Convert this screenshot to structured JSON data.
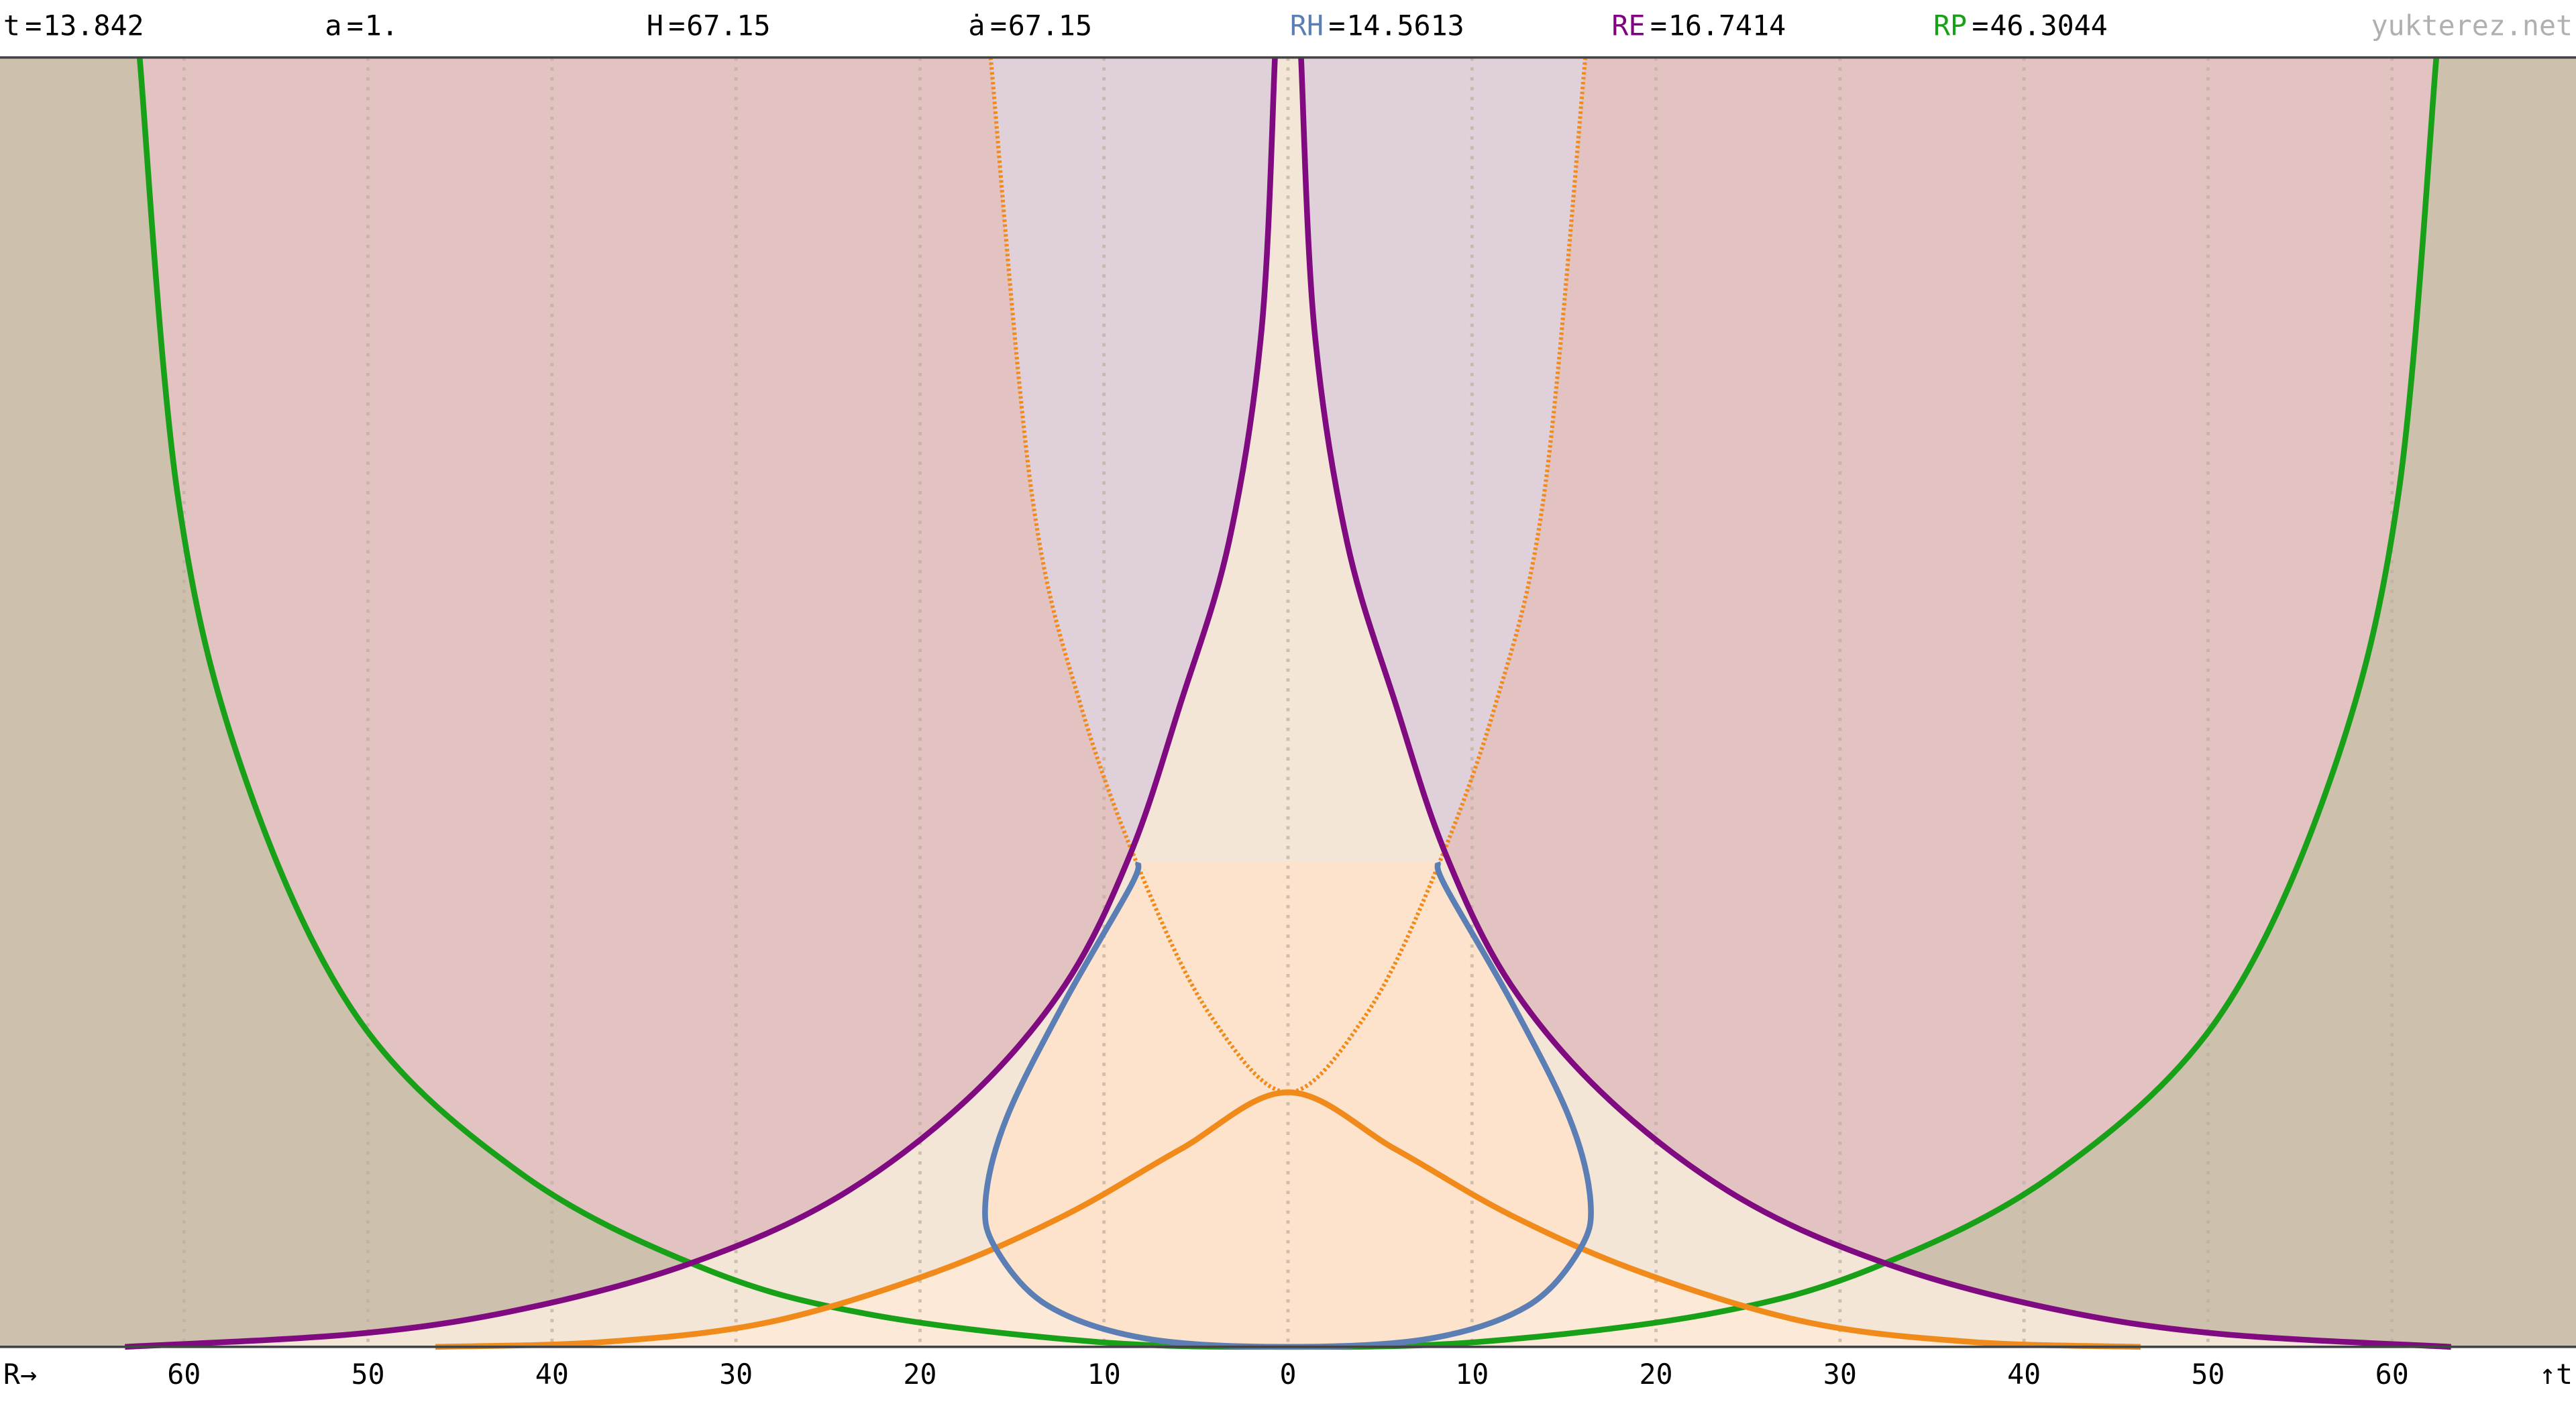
{
  "chart_data": {
    "type": "line",
    "header_items": [
      {
        "label": "t",
        "value": 13.842,
        "color": "#000000"
      },
      {
        "label": "a",
        "value": "1.",
        "color": "#000000"
      },
      {
        "label": "H",
        "value": 67.15,
        "color": "#000000"
      },
      {
        "label": "ȧ",
        "value": 67.15,
        "color": "#000000"
      },
      {
        "label": "RH",
        "value": 14.5613,
        "color": "#5b7fb5"
      },
      {
        "label": "RE",
        "value": 16.7414,
        "color": "#800080"
      },
      {
        "label": "RP",
        "value": 46.3044,
        "color": "#18a018"
      }
    ],
    "separator": "=",
    "site": "yukterez.net",
    "x_label": "R→",
    "y_label": "↑t",
    "background": "#cdc1ae",
    "xlim": [
      -70,
      70
    ],
    "ylim": [
      0,
      13.842
    ],
    "xticks": [
      {
        "value": -60,
        "label": "60"
      },
      {
        "value": -50,
        "label": "50"
      },
      {
        "value": -40,
        "label": "40"
      },
      {
        "value": -30,
        "label": "30"
      },
      {
        "value": -20,
        "label": "20"
      },
      {
        "value": -10,
        "label": "10"
      },
      0,
      10,
      20,
      30,
      40,
      50,
      60
    ],
    "grid": true,
    "series": [
      {
        "name": "RP",
        "color": "#18a018",
        "fill": "#e2c3c2",
        "style": "solid",
        "x": [
          -62.41,
          -60.36,
          -56.79,
          -50.54,
          -41.61,
          -31.79,
          -22.86,
          -10.36,
          0,
          10.36,
          22.86,
          31.79,
          41.61,
          50.54,
          56.79,
          60.36,
          62.41
        ],
        "values": [
          13.842,
          9.169,
          6.171,
          3.526,
          1.851,
          0.846,
          0.353,
          0.053,
          0,
          0.053,
          0.353,
          0.846,
          1.851,
          3.526,
          6.171,
          9.169,
          13.842
        ]
      },
      {
        "name": "ȧ",
        "color": "#f08a1a",
        "fill": "#e0d0da",
        "style": "dotted",
        "x": [
          -16.16,
          -13.93,
          -11.25,
          -7.68,
          -4.11,
          0,
          4.11,
          7.68,
          11.25,
          13.93,
          16.16
        ],
        "values": [
          13.842,
          9.169,
          6.877,
          4.937,
          3.526,
          2.733,
          3.526,
          4.937,
          6.877,
          9.169,
          13.842
        ]
      },
      {
        "name": "RE",
        "color": "#800a80",
        "fill": "#f4e6d6",
        "style": "solid",
        "x": [
          -63.21,
          -50.54,
          -41.61,
          -32.68,
          -24.64,
          -17.5,
          -12.14,
          -8.57,
          -5.89,
          -3.21,
          -1.43,
          -0.71,
          null,
          0.71,
          1.43,
          3.21,
          5.89,
          8.57,
          12.14,
          17.5,
          24.64,
          32.68,
          41.61,
          50.54,
          63.21
        ],
        "values": [
          0,
          0.141,
          0.406,
          0.882,
          1.587,
          2.645,
          3.879,
          5.29,
          6.877,
          8.64,
          10.932,
          13.842,
          null,
          13.842,
          10.932,
          8.64,
          6.877,
          5.29,
          3.879,
          2.645,
          1.587,
          0.882,
          0.406,
          0.141,
          0
        ]
      },
      {
        "name": "t",
        "color": "#f08a1a",
        "fill": "#fce9d8",
        "style": "solid",
        "x": [
          -46.34,
          -37.14,
          -28.21,
          -19.29,
          -12.14,
          -5.89,
          0,
          5.89,
          12.14,
          19.29,
          28.21,
          37.14,
          46.34
        ],
        "values": [
          0,
          0.053,
          0.265,
          0.794,
          1.411,
          2.116,
          2.733,
          2.116,
          1.411,
          0.794,
          0.265,
          0.053,
          0
        ]
      },
      {
        "name": "RH",
        "color": "#5b7fb5",
        "fill": "#fde3cc",
        "style": "solid",
        "x": [
          -8.13,
          -8.57,
          -12.14,
          -15.27,
          -16.43,
          -15.89,
          -13.04,
          -7.68,
          0,
          7.68,
          13.04,
          15.89,
          16.43,
          15.27,
          12.14,
          8.57,
          8.13
        ],
        "values": [
          5.202,
          4.937,
          3.703,
          2.469,
          1.587,
          1.058,
          0.441,
          0.088,
          0,
          0.088,
          0.441,
          1.058,
          1.587,
          2.469,
          3.703,
          4.937,
          5.202
        ]
      }
    ]
  }
}
